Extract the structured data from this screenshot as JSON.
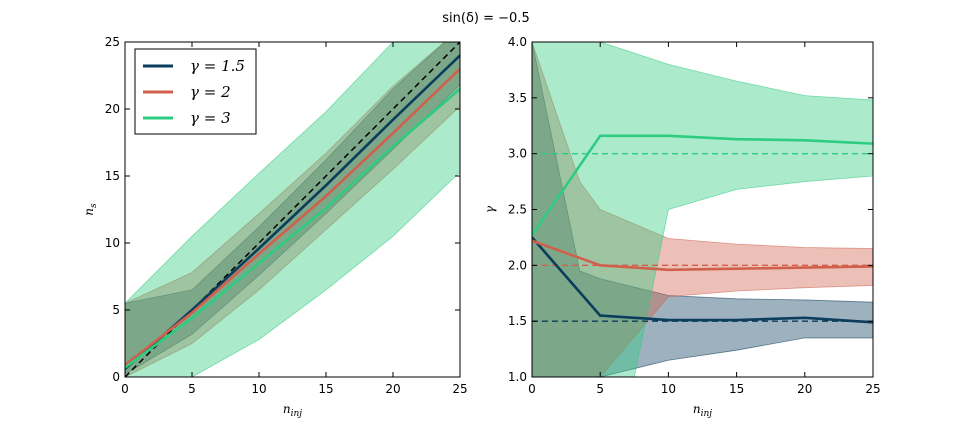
{
  "figure": {
    "title": "sin(δ) = −0.5"
  },
  "colors": {
    "g15": "#0b3d5c",
    "g2": "#d0604b",
    "g3": "#2dcc80"
  },
  "chart_data": [
    {
      "type": "line",
      "panel": "left",
      "xlabel": "n_inj",
      "ylabel": "n_s",
      "xlim": [
        0,
        25
      ],
      "ylim": [
        0,
        25
      ],
      "xticks": [
        0,
        5,
        10,
        15,
        20,
        25
      ],
      "yticks": [
        0,
        5,
        10,
        15,
        20,
        25
      ],
      "x": [
        0,
        5,
        10,
        15,
        20,
        25
      ],
      "legend": {
        "placement": "top-left"
      },
      "reference_line": {
        "style": "dashed",
        "color": "#000000",
        "x": [
          0,
          25
        ],
        "y": [
          0,
          25
        ]
      },
      "series": [
        {
          "name": "γ = 1.5",
          "color": "#0b3d5c",
          "values": [
            0.6,
            5.0,
            9.6,
            14.3,
            19.2,
            24.0
          ],
          "band_lower": [
            0.2,
            3.2,
            7.6,
            12.2,
            17.0,
            21.8
          ],
          "band_upper": [
            5.5,
            6.5,
            11.2,
            16.2,
            21.5,
            26.0
          ]
        },
        {
          "name": "γ = 2",
          "color": "#d0604b",
          "values": [
            0.9,
            4.8,
            9.2,
            13.5,
            18.2,
            23.0
          ],
          "band_lower": [
            0.0,
            2.5,
            6.5,
            11.0,
            15.5,
            20.2
          ],
          "band_upper": [
            5.5,
            7.8,
            12.2,
            16.7,
            21.7,
            26.0
          ]
        },
        {
          "name": "γ = 3",
          "color": "#2dcc80",
          "values": [
            0.7,
            4.4,
            8.5,
            12.6,
            17.2,
            21.5
          ],
          "band_lower": [
            0.0,
            0.0,
            2.8,
            6.5,
            10.5,
            15.3
          ],
          "band_upper": [
            5.5,
            10.5,
            15.2,
            19.8,
            25.0,
            26.0
          ]
        }
      ]
    },
    {
      "type": "line",
      "panel": "right",
      "xlabel": "n_inj",
      "ylabel": "γ",
      "xlim": [
        0,
        25
      ],
      "ylim": [
        1.0,
        4.0
      ],
      "xticks": [
        0,
        5,
        10,
        15,
        20,
        25
      ],
      "yticks": [
        "1.0",
        "1.5",
        "2.0",
        "2.5",
        "3.0",
        "3.5",
        "4.0"
      ],
      "x": [
        0,
        5,
        10,
        15,
        20,
        25
      ],
      "reference_lines": [
        {
          "y": 1.5,
          "style": "dashed",
          "color": "#0b3d5c"
        },
        {
          "y": 2.0,
          "style": "dashed",
          "color": "#d0604b"
        },
        {
          "y": 3.0,
          "style": "dashed",
          "color": "#2dcc80"
        }
      ],
      "series": [
        {
          "name": "γ = 1.5",
          "color": "#0b3d5c",
          "values": [
            2.25,
            1.55,
            1.51,
            1.51,
            1.53,
            1.49
          ],
          "band_x": [
            0,
            3.5,
            5,
            10,
            15,
            20,
            25
          ],
          "band_lower": [
            1.0,
            1.0,
            1.0,
            1.15,
            1.24,
            1.35,
            1.35
          ],
          "band_upper": [
            4.0,
            1.95,
            1.88,
            1.73,
            1.7,
            1.69,
            1.67
          ]
        },
        {
          "name": "γ = 2",
          "color": "#d0604b",
          "values": [
            2.22,
            2.0,
            1.96,
            1.97,
            1.98,
            1.99
          ],
          "band_x": [
            0,
            3.5,
            5,
            10,
            15,
            20,
            25
          ],
          "band_lower": [
            1.0,
            1.0,
            1.0,
            1.72,
            1.77,
            1.8,
            1.82
          ],
          "band_upper": [
            4.0,
            2.75,
            2.5,
            2.24,
            2.19,
            2.16,
            2.15
          ]
        },
        {
          "name": "γ = 3",
          "color": "#2dcc80",
          "values": [
            2.27,
            3.16,
            3.16,
            3.13,
            3.12,
            3.09
          ],
          "band_x": [
            0,
            5,
            7.5,
            10,
            15,
            20,
            25
          ],
          "band_lower": [
            1.0,
            1.0,
            1.0,
            2.5,
            2.68,
            2.75,
            2.8
          ],
          "band_upper": [
            4.0,
            4.0,
            3.9,
            3.8,
            3.65,
            3.52,
            3.48
          ]
        }
      ]
    }
  ]
}
